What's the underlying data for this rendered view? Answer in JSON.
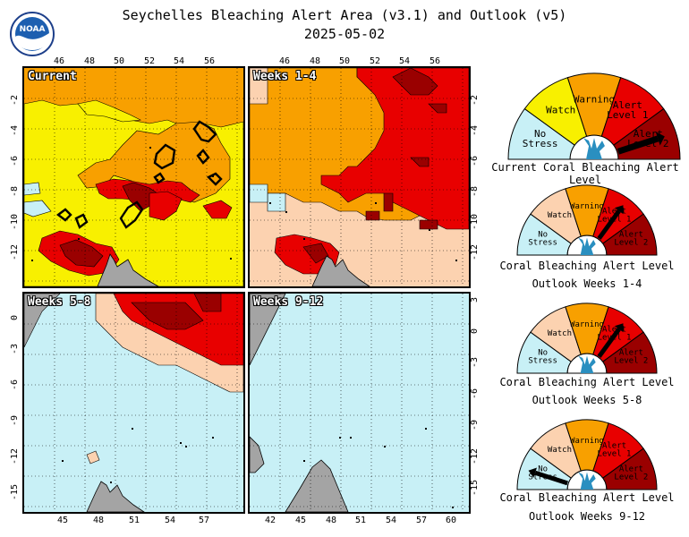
{
  "title": "Seychelles Bleaching Alert Area (v3.1) and Outlook (v5)",
  "date": "2025-05-02",
  "logo_text": "NOAA",
  "colors": {
    "no_stress": "#c8f0f6",
    "watch": "#f8f000",
    "warning": "#f8a000",
    "alert1": "#e80000",
    "alert2": "#9a0000",
    "outlook_watch": "#fcd2b0",
    "land": "#a4a4a4"
  },
  "panels": [
    {
      "label": "Current",
      "top_ticks": [
        "46",
        "48",
        "50",
        "52",
        "54",
        "56"
      ],
      "left_ticks": [
        "-2",
        "-4",
        "-6",
        "-8",
        "-10",
        "-12"
      ]
    },
    {
      "label": "Weeks 1-4",
      "top_ticks": [
        "46",
        "48",
        "50",
        "52",
        "54",
        "56"
      ],
      "right_ticks": [
        "-2",
        "-4",
        "-6",
        "-8",
        "-10",
        "-12"
      ]
    },
    {
      "label": "Weeks 5-8",
      "bottom_ticks": [
        "45",
        "48",
        "51",
        "54",
        "57"
      ],
      "left_ticks": [
        "0",
        "-3",
        "-6",
        "-9",
        "-12",
        "-15"
      ]
    },
    {
      "label": "Weeks 9-12",
      "bottom_ticks": [
        "42",
        "45",
        "48",
        "51",
        "54",
        "57",
        "60"
      ],
      "right_ticks": [
        "3",
        "0",
        "-3",
        "-6",
        "-9",
        "-12",
        "-15"
      ]
    }
  ],
  "gauges": [
    {
      "caption_1": "Current Coral Bleaching Alert Level",
      "caption_2": "",
      "level": 5,
      "labels": [
        "No Stress",
        "Watch",
        "Warning",
        "Alert Level 1",
        "Alert Level 2"
      ],
      "icon": "coral-icon"
    },
    {
      "caption_1": "Coral Bleaching Alert Level",
      "caption_2": "Outlook Weeks 1-4",
      "level": 4,
      "labels": [
        "No Stress",
        "Watch",
        "Warning",
        "Alert Level 1",
        "Alert Level 2"
      ],
      "icon": "coral-icon"
    },
    {
      "caption_1": "Coral Bleaching Alert Level",
      "caption_2": "Outlook Weeks 5-8",
      "level": 4,
      "labels": [
        "No Stress",
        "Watch",
        "Warning",
        "Alert Level 1",
        "Alert Level 2"
      ],
      "icon": "coral-icon"
    },
    {
      "caption_1": "Coral Bleaching Alert Level",
      "caption_2": "Outlook Weeks 9-12",
      "level": 1,
      "labels": [
        "No Stress",
        "Watch",
        "Warning",
        "Alert Level 1",
        "Alert Level 2"
      ],
      "icon": "coral-icon"
    }
  ]
}
